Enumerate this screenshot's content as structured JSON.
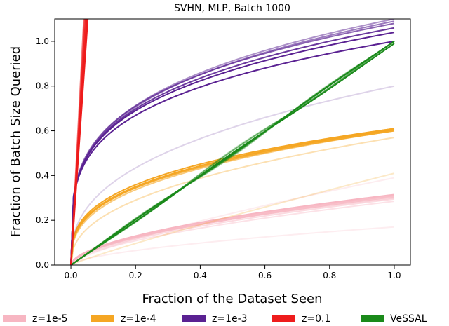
{
  "chart_data": {
    "type": "line",
    "title": "SVHN, MLP, Batch 1000",
    "xlabel": "Fraction of the Dataset Seen",
    "ylabel": "Fraction of Batch Size Queried",
    "xlim": [
      -0.05,
      1.05
    ],
    "ylim": [
      0,
      1.1
    ],
    "xticks": [
      "0.0",
      "0.2",
      "0.4",
      "0.6",
      "0.8",
      "1.0"
    ],
    "yticks": [
      "0.0",
      "0.2",
      "0.4",
      "0.6",
      "0.8",
      "1.0"
    ],
    "legend_position": "bottom",
    "grid": false,
    "series": [
      {
        "name": "z=1e-5",
        "color": "#f7b6c2",
        "runs": [
          {
            "a": 0.315,
            "p": 0.55,
            "alpha": 1.0
          },
          {
            "a": 0.31,
            "p": 0.56,
            "alpha": 0.9
          },
          {
            "a": 0.305,
            "p": 0.57,
            "alpha": 0.8
          },
          {
            "a": 0.3,
            "p": 0.55,
            "alpha": 0.6
          },
          {
            "a": 0.295,
            "p": 0.58,
            "alpha": 0.5
          },
          {
            "a": 0.285,
            "p": 0.6,
            "alpha": 0.4
          },
          {
            "a": 0.39,
            "p": 0.75,
            "alpha": 0.25
          },
          {
            "a": 0.17,
            "p": 0.6,
            "alpha": 0.25
          }
        ]
      },
      {
        "name": "z=1e-4",
        "color": "#f5a623",
        "runs": [
          {
            "a": 0.61,
            "p": 0.33,
            "alpha": 1.0
          },
          {
            "a": 0.605,
            "p": 0.34,
            "alpha": 1.0
          },
          {
            "a": 0.6,
            "p": 0.345,
            "alpha": 0.9
          },
          {
            "a": 0.61,
            "p": 0.35,
            "alpha": 0.8
          },
          {
            "a": 0.6,
            "p": 0.36,
            "alpha": 0.6
          },
          {
            "a": 0.57,
            "p": 0.42,
            "alpha": 0.35
          },
          {
            "a": 0.41,
            "p": 0.9,
            "alpha": 0.25
          }
        ]
      },
      {
        "name": "z=1e-3",
        "color": "#5a2192",
        "runs": [
          {
            "a": 1.0,
            "p": 0.25,
            "alpha": 1.0
          },
          {
            "a": 1.04,
            "p": 0.255,
            "alpha": 1.0
          },
          {
            "a": 1.06,
            "p": 0.26,
            "alpha": 0.9
          },
          {
            "a": 1.08,
            "p": 0.26,
            "alpha": 0.7
          },
          {
            "a": 1.09,
            "p": 0.27,
            "alpha": 0.6
          },
          {
            "a": 1.1,
            "p": 0.27,
            "alpha": 0.5
          },
          {
            "a": 0.8,
            "p": 0.38,
            "alpha": 0.2
          }
        ]
      },
      {
        "name": "z=0.1",
        "color": "#ee1c1c",
        "runs": [
          {
            "slope": 21.0,
            "alpha": 1.0
          },
          {
            "slope": 22.5,
            "alpha": 1.0
          },
          {
            "slope": 24.0,
            "alpha": 0.9
          },
          {
            "slope": 25.5,
            "alpha": 0.8
          },
          {
            "slope": 27.5,
            "alpha": 0.6
          }
        ]
      },
      {
        "name": "VeSSAL",
        "color": "#1a8a1a",
        "runs": [
          {
            "k": 1.0,
            "w": 0.01,
            "alpha": 1.0
          },
          {
            "k": 0.99,
            "w": -0.012,
            "alpha": 1.0
          },
          {
            "k": 1.0,
            "w": 0.018,
            "alpha": 0.8
          },
          {
            "k": 1.0,
            "w": -0.022,
            "alpha": 0.6
          },
          {
            "k": 1.0,
            "w": 0.028,
            "alpha": 0.4
          },
          {
            "k": 1.0,
            "w": -0.03,
            "alpha": 0.3
          }
        ]
      }
    ]
  }
}
